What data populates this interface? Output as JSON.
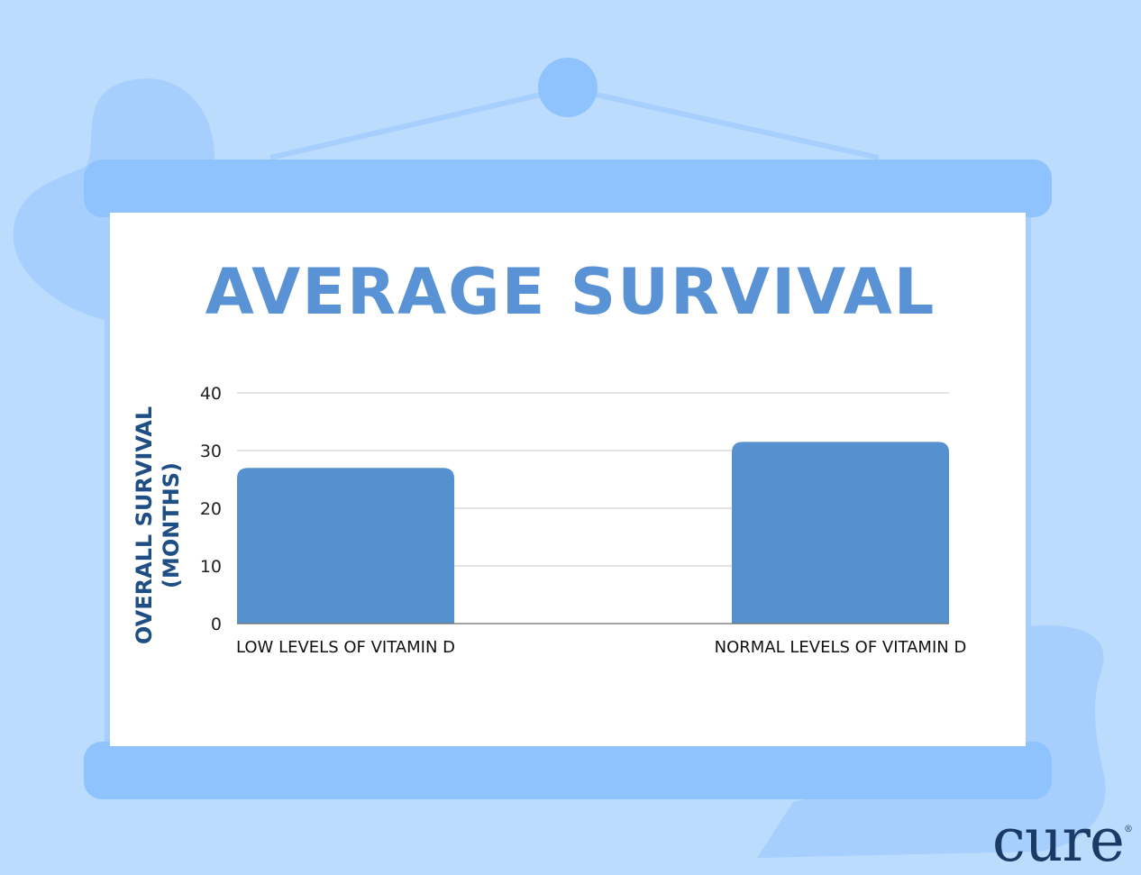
{
  "chart_data": {
    "type": "bar",
    "title": "AVERAGE SURVIVAL",
    "categories": [
      "LOW LEVELS OF VITAMIN D",
      "NORMAL LEVELS OF VITAMIN D"
    ],
    "values": [
      27,
      31.5
    ],
    "ylabel_line1": "OVERALL SURVIVAL",
    "ylabel_line2": "(MONTHS)",
    "xlabel": "",
    "ylim": [
      0,
      40
    ],
    "yticks": [
      0,
      10,
      20,
      30,
      40
    ],
    "grid": true,
    "bar_color": "#5591ce",
    "title_color": "#5a93d5",
    "ylabel_color": "#1f4e84"
  },
  "logo": {
    "text": "cure",
    "mark": "®"
  }
}
